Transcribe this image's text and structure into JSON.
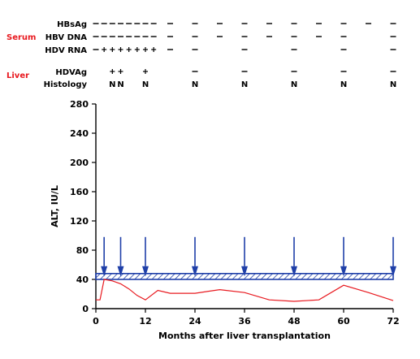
{
  "chart_data": {
    "type": "line",
    "xlabel": "Months after liver transplantation",
    "ylabel": "ALT, IU/L",
    "xlim": [
      0,
      72
    ],
    "ylim": [
      0,
      280
    ],
    "xticks": [
      0,
      12,
      24,
      36,
      48,
      60,
      72
    ],
    "yticks": [
      0,
      40,
      80,
      120,
      160,
      200,
      240,
      280
    ],
    "grid": false,
    "series": [
      {
        "color": "#e8191f",
        "x": [
          0,
          1,
          2,
          4,
          6,
          8,
          10,
          12,
          15,
          18,
          24,
          30,
          36,
          42,
          48,
          54,
          60,
          66,
          72
        ],
        "y": [
          12,
          12,
          40,
          38,
          34,
          27,
          18,
          12,
          25,
          21,
          21,
          26,
          22,
          12,
          10,
          12,
          32,
          22,
          11
        ]
      }
    ],
    "normal_band": {
      "y_range": [
        40,
        48
      ],
      "pattern": "hatched",
      "color": "#1f3fa8"
    },
    "arrow_markers": {
      "x": [
        2,
        6,
        12,
        24,
        36,
        48,
        60,
        72
      ],
      "color": "#1f3fa8"
    },
    "marker_table": {
      "groups": [
        {
          "label": "Serum",
          "color": "#e8191f",
          "rows": [
            "HBsAg",
            "HBV DNA",
            "HDV RNA"
          ]
        },
        {
          "label": "Liver",
          "color": "#e8191f",
          "rows": [
            "HDVAg",
            "Histology"
          ]
        }
      ],
      "rows": [
        {
          "label": "HBsAg",
          "entries": [
            {
              "x": 0,
              "s": "−"
            },
            {
              "x": 2,
              "s": "−"
            },
            {
              "x": 4,
              "s": "−"
            },
            {
              "x": 6,
              "s": "−"
            },
            {
              "x": 8,
              "s": "−"
            },
            {
              "x": 10,
              "s": "−"
            },
            {
              "x": 12,
              "s": "−"
            },
            {
              "x": 14,
              "s": "−"
            },
            {
              "x": 18,
              "s": "−"
            },
            {
              "x": 24,
              "s": "−"
            },
            {
              "x": 30,
              "s": "−"
            },
            {
              "x": 36,
              "s": "−"
            },
            {
              "x": 42,
              "s": "−"
            },
            {
              "x": 48,
              "s": "−"
            },
            {
              "x": 54,
              "s": "−"
            },
            {
              "x": 60,
              "s": "−"
            },
            {
              "x": 66,
              "s": "−"
            },
            {
              "x": 72,
              "s": "−"
            }
          ]
        },
        {
          "label": "HBV DNA",
          "entries": [
            {
              "x": 0,
              "s": "−"
            },
            {
              "x": 2,
              "s": "−"
            },
            {
              "x": 4,
              "s": "−"
            },
            {
              "x": 6,
              "s": "−"
            },
            {
              "x": 8,
              "s": "−"
            },
            {
              "x": 10,
              "s": "−"
            },
            {
              "x": 12,
              "s": "−"
            },
            {
              "x": 14,
              "s": "−"
            },
            {
              "x": 18,
              "s": "−"
            },
            {
              "x": 24,
              "s": "−"
            },
            {
              "x": 30,
              "s": "−"
            },
            {
              "x": 36,
              "s": "−"
            },
            {
              "x": 42,
              "s": "−"
            },
            {
              "x": 48,
              "s": "−"
            },
            {
              "x": 54,
              "s": "−"
            },
            {
              "x": 60,
              "s": "−"
            },
            {
              "x": 72,
              "s": "−"
            }
          ]
        },
        {
          "label": "HDV RNA",
          "entries": [
            {
              "x": 0,
              "s": "−"
            },
            {
              "x": 2,
              "s": "+"
            },
            {
              "x": 4,
              "s": "+"
            },
            {
              "x": 6,
              "s": "+"
            },
            {
              "x": 8,
              "s": "+"
            },
            {
              "x": 10,
              "s": "+"
            },
            {
              "x": 12,
              "s": "+"
            },
            {
              "x": 14,
              "s": "+"
            },
            {
              "x": 18,
              "s": "−"
            },
            {
              "x": 24,
              "s": "−"
            },
            {
              "x": 36,
              "s": "−"
            },
            {
              "x": 48,
              "s": "−"
            },
            {
              "x": 60,
              "s": "−"
            },
            {
              "x": 72,
              "s": "−"
            }
          ]
        },
        {
          "label": "HDVAg",
          "entries": [
            {
              "x": 4,
              "s": "+"
            },
            {
              "x": 6,
              "s": "+"
            },
            {
              "x": 12,
              "s": "+"
            },
            {
              "x": 24,
              "s": "−"
            },
            {
              "x": 36,
              "s": "−"
            },
            {
              "x": 48,
              "s": "−"
            },
            {
              "x": 60,
              "s": "−"
            },
            {
              "x": 72,
              "s": "−"
            }
          ]
        },
        {
          "label": "Histology",
          "entries": [
            {
              "x": 4,
              "s": "N"
            },
            {
              "x": 6,
              "s": "N"
            },
            {
              "x": 12,
              "s": "N"
            },
            {
              "x": 24,
              "s": "N"
            },
            {
              "x": 36,
              "s": "N"
            },
            {
              "x": 48,
              "s": "N"
            },
            {
              "x": 60,
              "s": "N"
            },
            {
              "x": 72,
              "s": "N"
            }
          ]
        }
      ]
    }
  }
}
